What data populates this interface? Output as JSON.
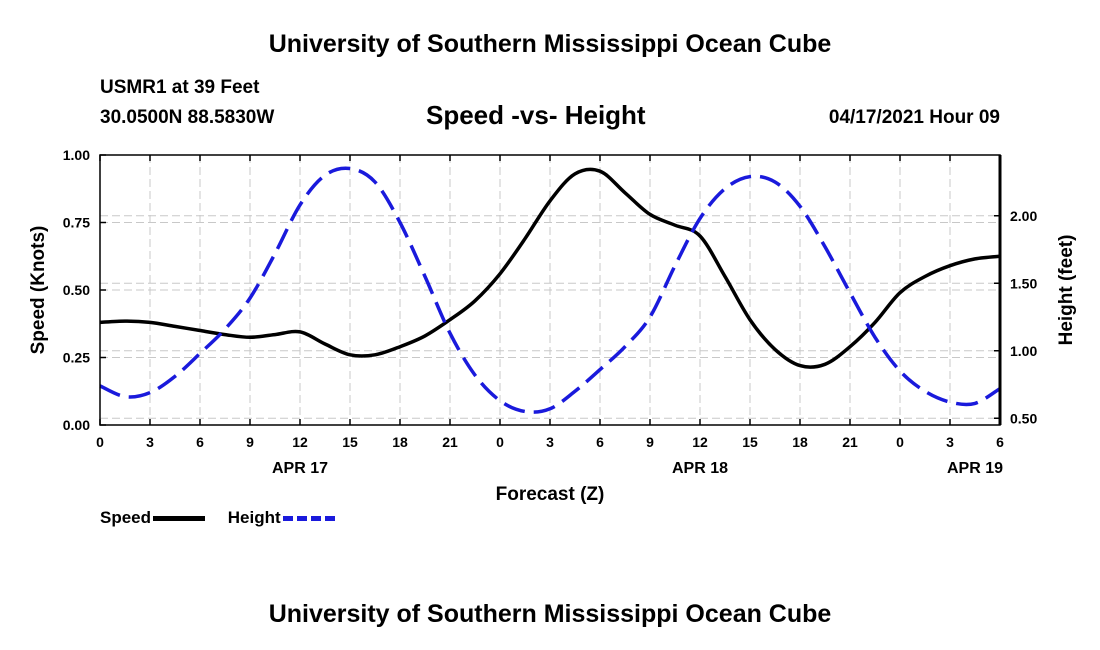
{
  "header": {
    "title": "University of Southern Mississippi Ocean Cube",
    "station": "USMR1 at 39 Feet",
    "coords": "30.0500N  88.5830W",
    "datetime": "04/17/2021 Hour 09"
  },
  "footer": {
    "title": "University of Southern Mississippi Ocean Cube"
  },
  "legend": {
    "speed_label": "Speed",
    "height_label": "Height"
  },
  "colors": {
    "speed": "#000000",
    "height": "#1a1adc",
    "grid": "#c8c8c8"
  },
  "chart_data": {
    "type": "line",
    "title": "Speed -vs- Height",
    "xlabel": "Forecast (Z)",
    "ylabel": "Speed (Knots)",
    "y2label": "Height (feet)",
    "xlim": [
      0,
      54
    ],
    "ylim": [
      0,
      1.0
    ],
    "y2lim": [
      0.45,
      2.45
    ],
    "x_ticks": [
      0,
      3,
      6,
      9,
      12,
      15,
      18,
      21,
      24,
      27,
      30,
      33,
      36,
      39,
      42,
      45,
      48,
      51,
      54
    ],
    "x_tick_labels": [
      "0",
      "3",
      "6",
      "9",
      "12",
      "15",
      "18",
      "21",
      "0",
      "3",
      "6",
      "9",
      "12",
      "15",
      "18",
      "21",
      "0",
      "3",
      "6"
    ],
    "date_labels": [
      {
        "x": 12,
        "label": "APR 17"
      },
      {
        "x": 36,
        "label": "APR 18"
      },
      {
        "x": 52.5,
        "label": "APR 19"
      }
    ],
    "y_ticks": [
      0,
      0.25,
      0.5,
      0.75,
      1.0
    ],
    "y_tick_labels": [
      "0.00",
      "0.25",
      "0.50",
      "0.75",
      "1.00"
    ],
    "y2_ticks": [
      0.5,
      1.0,
      1.5,
      2.0
    ],
    "y2_tick_labels": [
      "0.50",
      "1.00",
      "1.50",
      "2.00"
    ],
    "grid": true,
    "series": [
      {
        "name": "Speed",
        "axis": "left",
        "style": "solid",
        "x": [
          0,
          1.5,
          3,
          4.5,
          6,
          7.5,
          9,
          10.5,
          12,
          13.5,
          15,
          16.5,
          18,
          19.5,
          21,
          22.5,
          24,
          25.5,
          27,
          28.5,
          30,
          31.5,
          33,
          34.5,
          36,
          37.5,
          39,
          40.5,
          42,
          43.5,
          45,
          46.5,
          48,
          49.5,
          51,
          52.5,
          54
        ],
        "values": [
          0.38,
          0.385,
          0.38,
          0.365,
          0.35,
          0.335,
          0.325,
          0.335,
          0.345,
          0.3,
          0.26,
          0.26,
          0.29,
          0.33,
          0.39,
          0.46,
          0.56,
          0.69,
          0.83,
          0.93,
          0.94,
          0.86,
          0.78,
          0.74,
          0.7,
          0.55,
          0.39,
          0.28,
          0.22,
          0.225,
          0.29,
          0.38,
          0.49,
          0.55,
          0.59,
          0.615,
          0.625
        ]
      },
      {
        "name": "Height",
        "axis": "right",
        "style": "dashed",
        "x": [
          0,
          1.5,
          3,
          4.5,
          6,
          7.5,
          9,
          10.5,
          12,
          13.5,
          15,
          16.5,
          18,
          19.5,
          21,
          22.5,
          24,
          25.5,
          27,
          28.5,
          30,
          31.5,
          33,
          34.5,
          36,
          37.5,
          39,
          40.5,
          42,
          43.5,
          45,
          46.5,
          48,
          49.5,
          51,
          52.5,
          54
        ],
        "values": [
          0.74,
          0.66,
          0.69,
          0.81,
          0.98,
          1.16,
          1.39,
          1.72,
          2.08,
          2.3,
          2.35,
          2.25,
          1.95,
          1.55,
          1.13,
          0.82,
          0.63,
          0.55,
          0.57,
          0.7,
          0.86,
          1.03,
          1.25,
          1.63,
          1.98,
          2.2,
          2.29,
          2.25,
          2.07,
          1.77,
          1.43,
          1.1,
          0.85,
          0.7,
          0.62,
          0.61,
          0.72
        ]
      }
    ]
  }
}
